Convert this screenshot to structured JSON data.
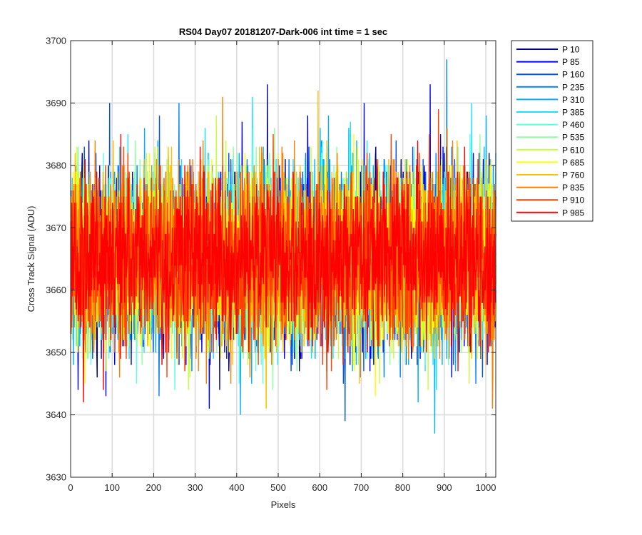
{
  "chart_data": {
    "type": "line",
    "title": "RS04 Day07 20181207-Dark-006 int time = 1 sec",
    "xlabel": "Pixels",
    "ylabel": "Cross Track Signal (ADU)",
    "xlim": [
      0,
      1024
    ],
    "ylim": [
      3630,
      3700
    ],
    "xticks": [
      0,
      100,
      200,
      300,
      400,
      500,
      600,
      700,
      800,
      900,
      1000
    ],
    "yticks": [
      3630,
      3640,
      3650,
      3660,
      3670,
      3680,
      3690,
      3700
    ],
    "grid": true,
    "legend_position": "outside-top-right",
    "n_points_per_series": 1024,
    "series": [
      {
        "name": "P 10",
        "color": "#00008f",
        "mean": 3665.2,
        "std": 7.0,
        "outliers": [
          [
            473,
            3693
          ],
          [
            570,
            3688
          ],
          [
            660,
            3645
          ]
        ]
      },
      {
        "name": "P 85",
        "color": "#0000ff",
        "mean": 3665.0,
        "std": 7.0,
        "outliers": [
          [
            333,
            3641
          ],
          [
            706,
            3690
          ],
          [
            865,
            3693
          ]
        ]
      },
      {
        "name": "P 160",
        "color": "#0050ff",
        "mean": 3665.3,
        "std": 7.0,
        "outliers": [
          [
            93,
            3690
          ],
          [
            213,
            3688
          ],
          [
            660,
            3639
          ]
        ]
      },
      {
        "name": "P 235",
        "color": "#0080ff",
        "mean": 3665.1,
        "std": 7.0,
        "outliers": [
          [
            260,
            3690
          ],
          [
            905,
            3697
          ],
          [
            975,
            3645
          ]
        ]
      },
      {
        "name": "P 310",
        "color": "#00b0ff",
        "mean": 3665.0,
        "std": 7.0,
        "outliers": [
          [
            408,
            3640
          ],
          [
            876,
            3637
          ],
          [
            620,
            3688
          ]
        ]
      },
      {
        "name": "P 385",
        "color": "#20e0ff",
        "mean": 3665.2,
        "std": 7.0,
        "outliers": [
          [
            437,
            3691
          ],
          [
            965,
            3690
          ]
        ]
      },
      {
        "name": "P 460",
        "color": "#60ffe0",
        "mean": 3665.0,
        "std": 7.0,
        "outliers": []
      },
      {
        "name": "P 535",
        "color": "#90ffa0",
        "mean": 3665.1,
        "std": 7.0,
        "outliers": [
          [
            490,
            3686
          ]
        ]
      },
      {
        "name": "P 610",
        "color": "#c8ff38",
        "mean": 3665.2,
        "std": 7.0,
        "outliers": [
          [
            350,
            3688
          ]
        ]
      },
      {
        "name": "P 685",
        "color": "#ffff00",
        "mean": 3665.0,
        "std": 7.0,
        "outliers": [
          [
            470,
            3641
          ]
        ]
      },
      {
        "name": "P 760",
        "color": "#ffc000",
        "mean": 3665.3,
        "std": 7.0,
        "outliers": [
          [
            595,
            3692
          ],
          [
            470,
            3641
          ]
        ]
      },
      {
        "name": "P 835",
        "color": "#ff8000",
        "mean": 3665.1,
        "std": 7.0,
        "outliers": [
          [
            365,
            3691
          ],
          [
            1015,
            3641
          ]
        ]
      },
      {
        "name": "P 910",
        "color": "#ff4000",
        "mean": 3665.2,
        "std": 6.8,
        "outliers": [
          [
            885,
            3689
          ]
        ]
      },
      {
        "name": "P 985",
        "color": "#ff0000",
        "mean": 3665.0,
        "std": 6.6,
        "outliers": [
          [
            30,
            3642
          ],
          [
            78,
            3644
          ]
        ]
      }
    ]
  }
}
